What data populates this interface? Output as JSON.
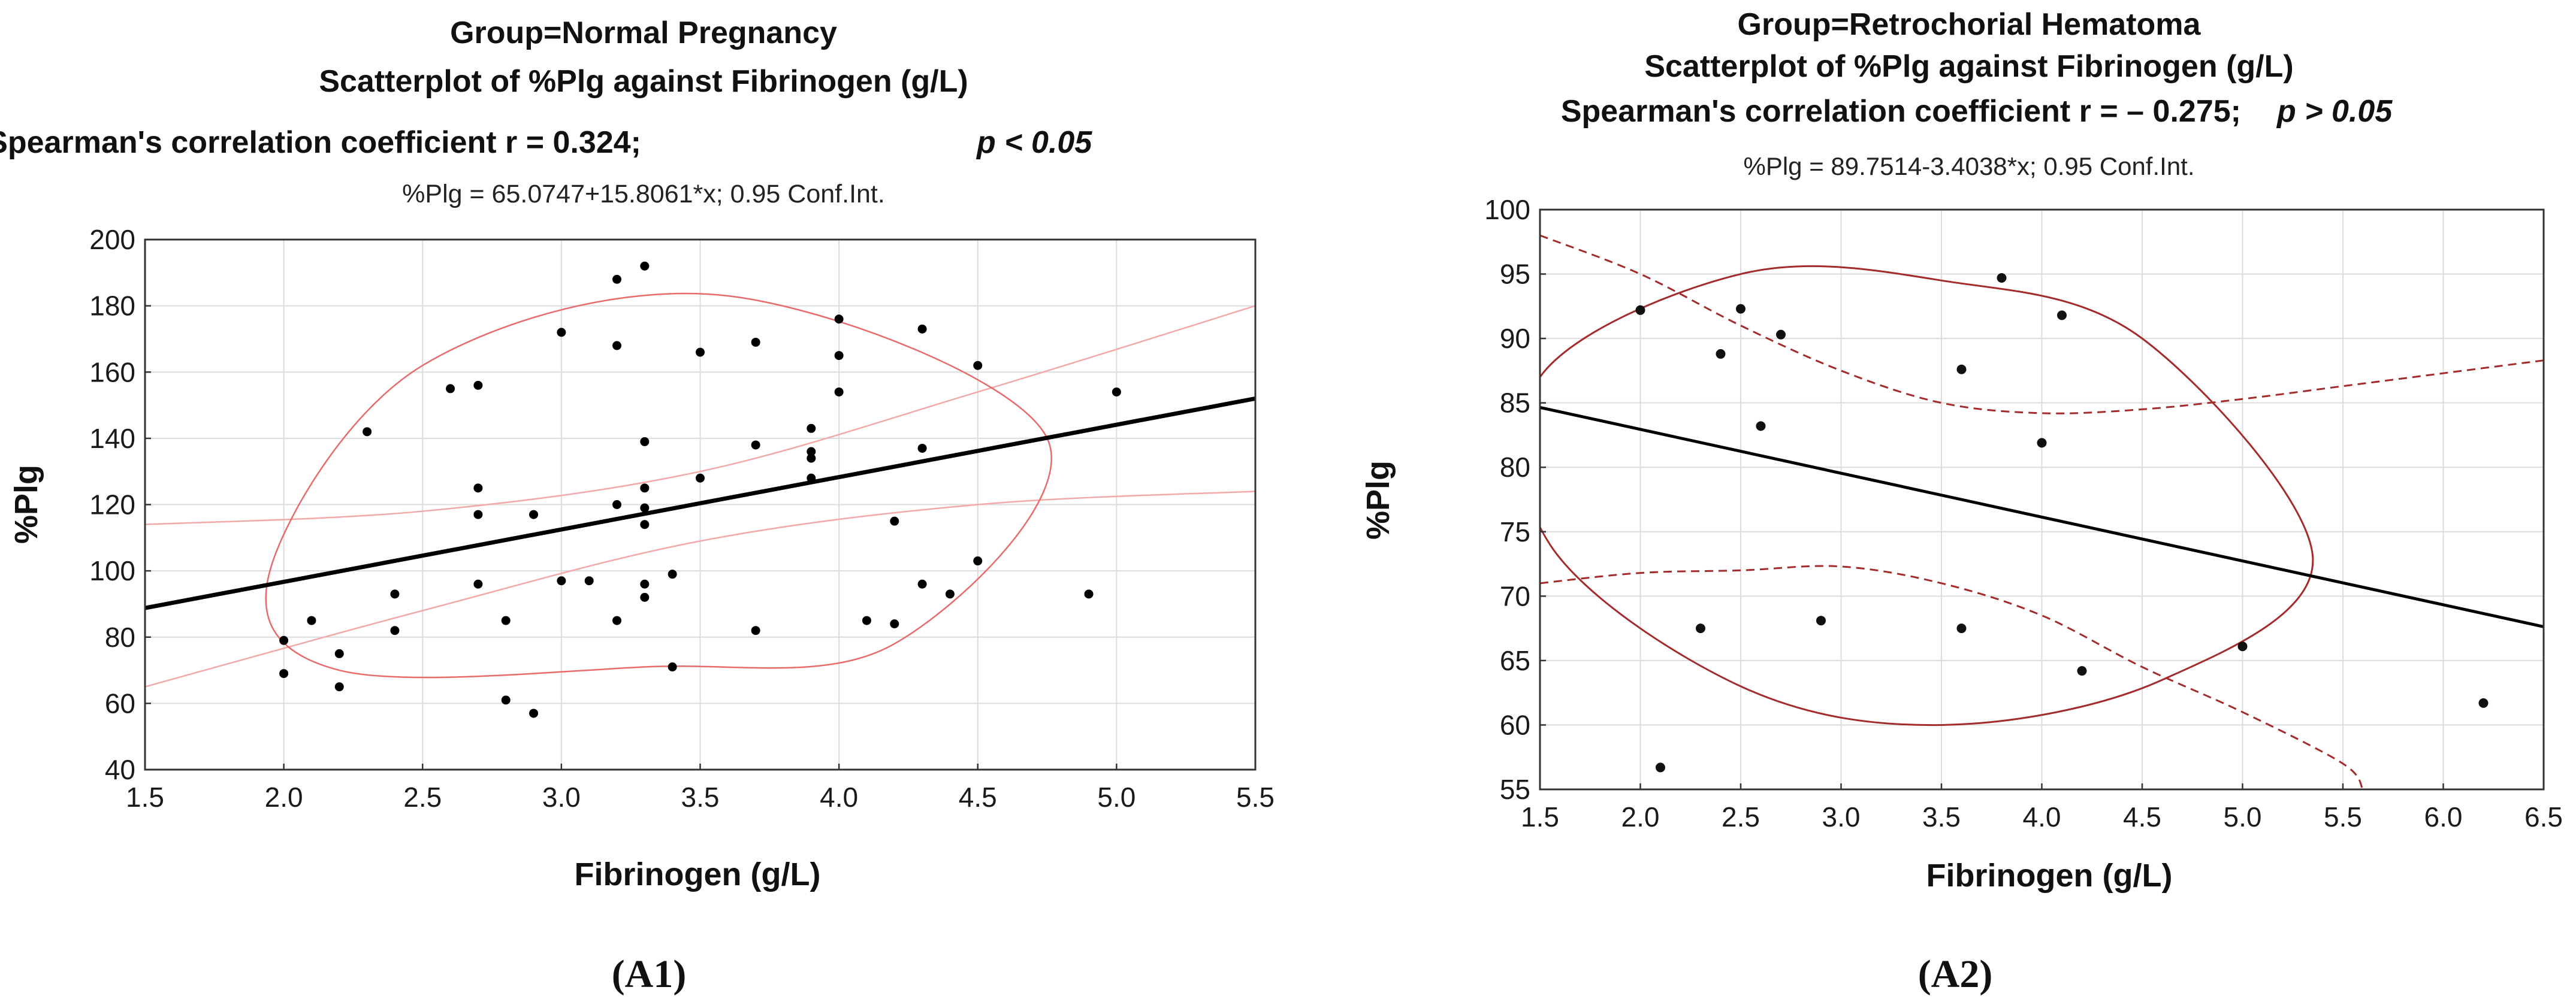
{
  "chart_data": [
    {
      "type": "scatter",
      "panel_label": "(A1)",
      "title": "Group=Normal Pregnancy",
      "subtitle": "Scatterplot of %Plg against Fibrinogen (g/L)",
      "stat_text": "Spearman's correlation coefficient r = 0.324;",
      "p_text": "p < 0.05",
      "regression_text": "%Plg = 65.0747+15.8061*x; 0.95 Conf.Int.",
      "xlabel": "Fibrinogen (g/L)",
      "ylabel": "%Plg",
      "xlim": [
        1.5,
        5.5
      ],
      "ylim": [
        40,
        200
      ],
      "xticks": [
        "1.5",
        "2.0",
        "2.5",
        "3.0",
        "3.5",
        "4.0",
        "4.5",
        "5.0",
        "5.5"
      ],
      "yticks": [
        "40",
        "60",
        "80",
        "100",
        "120",
        "140",
        "160",
        "180",
        "200"
      ],
      "grid": true,
      "regression": {
        "intercept": 65.0747,
        "slope": 15.8061
      },
      "conf_band_upper": [
        [
          1.5,
          114
        ],
        [
          2.5,
          118
        ],
        [
          3.5,
          130
        ],
        [
          4.5,
          154
        ],
        [
          5.5,
          180
        ]
      ],
      "conf_band_lower": [
        [
          1.5,
          65
        ],
        [
          2.5,
          88
        ],
        [
          3.5,
          109
        ],
        [
          4.5,
          120
        ],
        [
          5.5,
          124
        ]
      ],
      "ellipse": {
        "center": [
          3.36,
          126
        ],
        "points": [
          [
            1.95,
            100
          ],
          [
            2.5,
            162
          ],
          [
            3.6,
            183
          ],
          [
            4.75,
            140
          ],
          [
            4.2,
            78
          ],
          [
            3.3,
            71
          ],
          [
            2.2,
            70
          ]
        ]
      },
      "x": [
        2.0,
        2.0,
        2.1,
        2.2,
        2.2,
        2.3,
        2.4,
        2.4,
        2.6,
        2.7,
        2.7,
        2.7,
        2.7,
        2.8,
        2.8,
        2.9,
        2.9,
        3.0,
        3.0,
        3.1,
        3.2,
        3.2,
        3.2,
        3.2,
        3.3,
        3.3,
        3.3,
        3.3,
        3.3,
        3.3,
        3.3,
        3.4,
        3.4,
        3.5,
        3.5,
        3.7,
        3.7,
        3.7,
        3.9,
        3.9,
        3.9,
        3.9,
        4.0,
        4.0,
        4.0,
        4.1,
        4.2,
        4.2,
        4.3,
        4.3,
        4.3,
        4.4,
        4.5,
        4.5,
        4.9,
        5.0
      ],
      "y": [
        79,
        69,
        85,
        75,
        65,
        142,
        93,
        82,
        155,
        156,
        125,
        117,
        96,
        85,
        61,
        117,
        57,
        172,
        97,
        97,
        188,
        168,
        120,
        85,
        192,
        139,
        125,
        119,
        114,
        96,
        92,
        99,
        71,
        166,
        128,
        169,
        138,
        82,
        143,
        136,
        134,
        128,
        176,
        165,
        154,
        85,
        115,
        84,
        173,
        137,
        96,
        93,
        162,
        103,
        93,
        154
      ]
    },
    {
      "type": "scatter",
      "panel_label": "(A2)",
      "title": "Group=Retrochorial Hematoma",
      "subtitle": "Scatterplot of %Plg against Fibrinogen (g/L)",
      "stat_text": "Spearman's correlation coefficient r = – 0.275;",
      "p_text": "p > 0.05",
      "regression_text": "%Plg = 89.7514-3.4038*x; 0.95 Conf.Int.",
      "xlabel": "Fibrinogen (g/L)",
      "ylabel": "%Plg",
      "xlim": [
        1.5,
        6.5
      ],
      "ylim": [
        55,
        100
      ],
      "xticks": [
        "1.5",
        "2.0",
        "2.5",
        "3.0",
        "3.5",
        "4.0",
        "4.5",
        "5.0",
        "5.5",
        "6.0",
        "6.5"
      ],
      "yticks": [
        "55",
        "60",
        "65",
        "70",
        "75",
        "80",
        "85",
        "90",
        "95",
        "100"
      ],
      "grid": true,
      "regression": {
        "intercept": 89.7514,
        "slope": -3.4038
      },
      "conf_band_upper": [
        [
          1.5,
          98
        ],
        [
          2.0,
          95
        ],
        [
          2.5,
          91
        ],
        [
          3.0,
          87.5
        ],
        [
          3.5,
          85
        ],
        [
          4.0,
          84.2
        ],
        [
          4.5,
          84.5
        ],
        [
          5.0,
          85.3
        ],
        [
          5.5,
          86.3
        ],
        [
          6.0,
          87.3
        ],
        [
          6.5,
          88.3
        ]
      ],
      "conf_band_lower": [
        [
          1.5,
          71
        ],
        [
          2.0,
          71.8
        ],
        [
          2.5,
          72
        ],
        [
          3.0,
          72.3
        ],
        [
          3.5,
          71
        ],
        [
          4.0,
          68.5
        ],
        [
          4.5,
          64.5
        ],
        [
          5.0,
          61
        ],
        [
          5.5,
          57
        ],
        [
          5.6,
          55
        ]
      ],
      "ellipse": {
        "center": [
          3.4,
          78.2
        ],
        "points": [
          [
            1.5,
            87
          ],
          [
            2.5,
            95
          ],
          [
            3.5,
            94.5
          ],
          [
            4.5,
            90
          ],
          [
            5.35,
            73
          ],
          [
            4.6,
            63.5
          ],
          [
            3.5,
            60
          ],
          [
            2.5,
            63
          ],
          [
            1.55,
            74
          ]
        ]
      },
      "x": [
        2.0,
        2.1,
        2.3,
        2.4,
        2.5,
        2.6,
        2.7,
        2.9,
        3.6,
        3.6,
        3.8,
        4.0,
        4.1,
        4.2,
        5.0,
        6.2
      ],
      "y": [
        92.2,
        56.7,
        67.5,
        88.8,
        92.3,
        83.2,
        90.3,
        68.1,
        87.6,
        67.5,
        94.7,
        81.9,
        91.8,
        64.2,
        66.1,
        61.7
      ]
    }
  ]
}
